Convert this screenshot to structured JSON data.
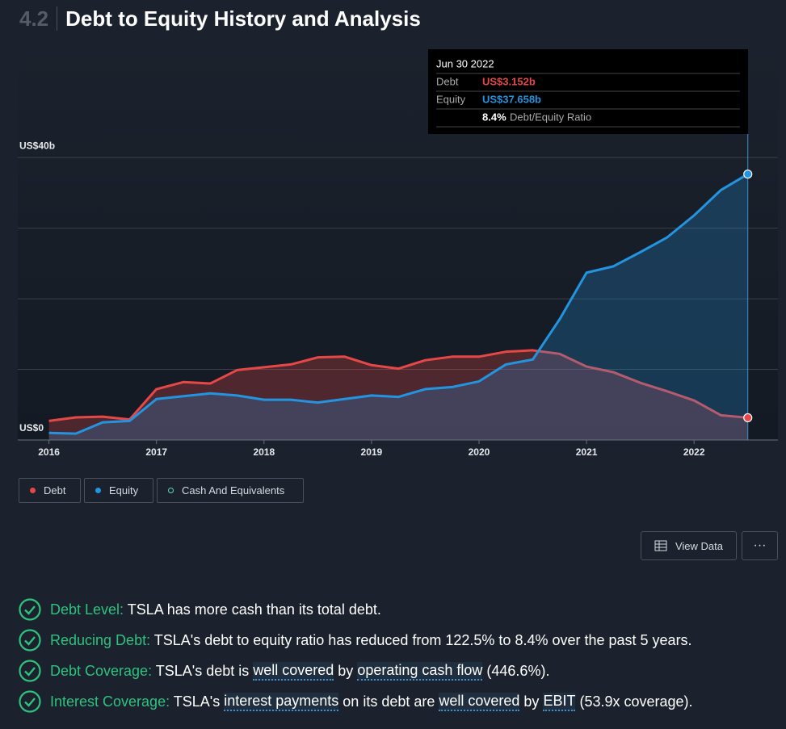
{
  "header": {
    "number": "4.2",
    "title": "Debt to Equity History and Analysis"
  },
  "tooltip": {
    "date": "Jun 30 2022",
    "rows": [
      {
        "label": "Debt",
        "value": "US$3.152b"
      },
      {
        "label": "Equity",
        "value": "US$37.658b"
      }
    ],
    "ratio": "8.4%",
    "ratio_label": "Debt/Equity Ratio"
  },
  "chart_data": {
    "type": "area",
    "x": [
      2016,
      2016.25,
      2016.5,
      2016.75,
      2017,
      2017.25,
      2017.5,
      2017.75,
      2018,
      2018.25,
      2018.5,
      2018.75,
      2019,
      2019.25,
      2019.5,
      2019.75,
      2020,
      2020.25,
      2020.5,
      2020.75,
      2021,
      2021.25,
      2021.5,
      2021.75,
      2022,
      2022.25,
      2022.5
    ],
    "series": [
      {
        "name": "Debt",
        "color": "#e64848",
        "values": [
          2.7,
          3.2,
          3.3,
          2.9,
          7.2,
          8.2,
          8.0,
          9.9,
          10.3,
          10.7,
          11.7,
          11.8,
          10.6,
          10.1,
          11.3,
          11.8,
          11.8,
          12.5,
          12.7,
          12.2,
          10.4,
          9.6,
          8.1,
          6.9,
          5.6,
          3.5,
          3.152
        ]
      },
      {
        "name": "Equity",
        "color": "#2394df",
        "values": [
          1.0,
          0.9,
          2.5,
          2.7,
          5.8,
          6.2,
          6.6,
          6.3,
          5.7,
          5.7,
          5.3,
          5.8,
          6.3,
          6.1,
          7.2,
          7.5,
          8.3,
          10.7,
          11.4,
          17.1,
          23.7,
          24.6,
          26.6,
          28.7,
          31.8,
          35.4,
          37.658
        ]
      }
    ],
    "hidden_series": [
      {
        "name": "Cash And Equivalents",
        "color": "#5fd3c3"
      }
    ],
    "xlim": [
      2015.71,
      2022.78
    ],
    "xticks": [
      2016,
      2017,
      2018,
      2019,
      2020,
      2021,
      2022
    ],
    "ylim": [
      0,
      55
    ],
    "yticks": [
      {
        "value": 0,
        "label": "US$0"
      },
      {
        "value": 40,
        "label": "US$40b"
      }
    ],
    "ygrid": [
      10,
      20,
      30,
      40
    ]
  },
  "buttons": {
    "view_data": "View Data",
    "more": "···"
  },
  "checks": [
    {
      "label": "Debt Level:",
      "segments": [
        {
          "text": " TSLA has more cash than its total debt.",
          "link": false
        }
      ]
    },
    {
      "label": "Reducing Debt:",
      "segments": [
        {
          "text": " TSLA's debt to equity ratio has reduced from 122.5% to 8.4% over the past 5 years.",
          "link": false
        }
      ]
    },
    {
      "label": "Debt Coverage:",
      "segments": [
        {
          "text": " TSLA's debt is ",
          "link": false
        },
        {
          "text": "well covered",
          "link": true
        },
        {
          "text": " by ",
          "link": false
        },
        {
          "text": "operating cash flow",
          "link": true
        },
        {
          "text": " (446.6%).",
          "link": false
        }
      ]
    },
    {
      "label": "Interest Coverage:",
      "segments": [
        {
          "text": " TSLA's ",
          "link": false
        },
        {
          "text": "interest payments",
          "link": true
        },
        {
          "text": " on its debt are ",
          "link": false
        },
        {
          "text": "well covered",
          "link": true
        },
        {
          "text": " by ",
          "link": false
        },
        {
          "text": "EBIT",
          "link": true
        },
        {
          "text": " (53.9x coverage).",
          "link": false
        }
      ]
    }
  ]
}
